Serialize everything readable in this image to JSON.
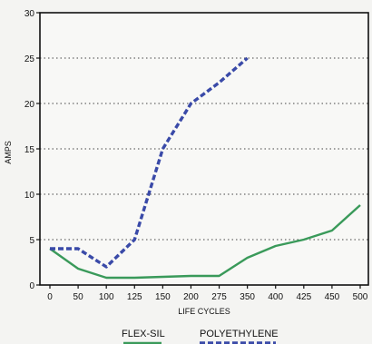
{
  "chart_data": {
    "type": "line",
    "title": "",
    "xlabel": "LIFE CYCLES",
    "ylabel": "AMPS",
    "categories": [
      "0",
      "50",
      "100",
      "125",
      "150",
      "175",
      "200",
      "225",
      "250",
      "275",
      "300",
      "325",
      "350",
      "375",
      "400",
      "425",
      "450",
      "475",
      "500"
    ],
    "x_tick_labels": [
      "0",
      "50",
      "100",
      "125",
      "150",
      "200",
      "275",
      "350",
      "400",
      "425",
      "450",
      "500"
    ],
    "ylim": [
      0,
      30
    ],
    "y_ticks": [
      0,
      5,
      10,
      15,
      20,
      25,
      30
    ],
    "grid": "horizontal dotted",
    "legend_placement": "bottom",
    "series": [
      {
        "name": "FLEX-SIL",
        "color": "#3a9a5a",
        "style": "solid",
        "values": [
          {
            "x": "0",
            "y": 4
          },
          {
            "x": "50",
            "y": 1.8
          },
          {
            "x": "100",
            "y": 0.8
          },
          {
            "x": "125",
            "y": 0.8
          },
          {
            "x": "150",
            "y": 0.9
          },
          {
            "x": "200",
            "y": 1.0
          },
          {
            "x": "275",
            "y": 1.0
          },
          {
            "x": "350",
            "y": 3.0
          },
          {
            "x": "400",
            "y": 4.3
          },
          {
            "x": "425",
            "y": 5.0
          },
          {
            "x": "450",
            "y": 6.0
          },
          {
            "x": "500",
            "y": 8.8
          }
        ]
      },
      {
        "name": "POLYETHYLENE",
        "color": "#3a4aa8",
        "style": "dashed",
        "values": [
          {
            "x": "0",
            "y": 4
          },
          {
            "x": "50",
            "y": 4
          },
          {
            "x": "100",
            "y": 2
          },
          {
            "x": "125",
            "y": 5
          },
          {
            "x": "150",
            "y": 15
          },
          {
            "x": "200",
            "y": 20
          },
          {
            "x": "275",
            "y": 22.3
          },
          {
            "x": "350",
            "y": 25
          }
        ]
      }
    ]
  }
}
